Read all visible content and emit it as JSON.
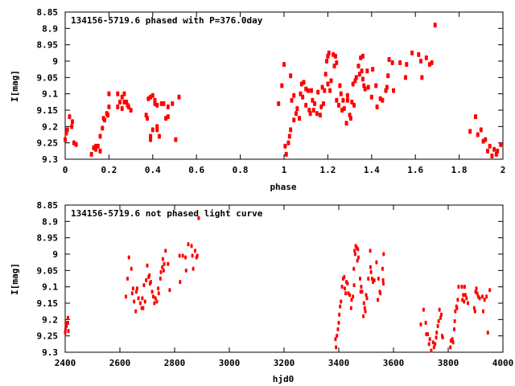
{
  "colors": {
    "points": "#ff0000",
    "axes": "#000000"
  },
  "chart_data": [
    {
      "type": "scatter",
      "title": "134156-5719.6 phased with P=376.0day",
      "xlabel": "phase",
      "ylabel": "I[mag]",
      "xlim": [
        0,
        2
      ],
      "ylim": [
        9.3,
        8.85
      ],
      "y_inverted": true,
      "grid": false,
      "xticks": [
        "0",
        "0.2",
        "0.4",
        "0.6",
        "0.8",
        "1",
        "1.2",
        "1.4",
        "1.6",
        "1.8",
        "2"
      ],
      "xtick_values": [
        0,
        0.2,
        0.4,
        0.6,
        0.8,
        1,
        1.2,
        1.4,
        1.6,
        1.8,
        2
      ],
      "yticks": [
        "8.85",
        "8.9",
        "8.95",
        "9",
        "9.05",
        "9.1",
        "9.15",
        "9.2",
        "9.25",
        "9.3"
      ],
      "ytick_values": [
        8.85,
        8.9,
        8.95,
        9.0,
        9.05,
        9.1,
        9.15,
        9.2,
        9.25,
        9.3
      ],
      "points": [
        [
          0.0,
          9.24
        ],
        [
          0.005,
          9.22
        ],
        [
          0.01,
          9.21
        ],
        [
          0.02,
          9.17
        ],
        [
          0.03,
          9.2
        ],
        [
          0.033,
          9.185
        ],
        [
          0.04,
          9.25
        ],
        [
          0.05,
          9.255
        ],
        [
          0.12,
          9.285
        ],
        [
          0.13,
          9.265
        ],
        [
          0.14,
          9.27
        ],
        [
          0.14,
          9.26
        ],
        [
          0.15,
          9.26
        ],
        [
          0.16,
          9.275
        ],
        [
          0.16,
          9.23
        ],
        [
          0.17,
          9.205
        ],
        [
          0.175,
          9.175
        ],
        [
          0.18,
          9.18
        ],
        [
          0.19,
          9.16
        ],
        [
          0.195,
          9.165
        ],
        [
          0.2,
          9.14
        ],
        [
          0.2,
          9.1
        ],
        [
          0.24,
          9.1
        ],
        [
          0.24,
          9.14
        ],
        [
          0.25,
          9.125
        ],
        [
          0.26,
          9.145
        ],
        [
          0.26,
          9.11
        ],
        [
          0.27,
          9.1
        ],
        [
          0.27,
          9.125
        ],
        [
          0.28,
          9.125
        ],
        [
          0.285,
          9.135
        ],
        [
          0.29,
          9.14
        ],
        [
          0.3,
          9.15
        ],
        [
          0.37,
          9.165
        ],
        [
          0.375,
          9.175
        ],
        [
          0.38,
          9.115
        ],
        [
          0.39,
          9.11
        ],
        [
          0.39,
          9.23
        ],
        [
          0.39,
          9.24
        ],
        [
          0.4,
          9.21
        ],
        [
          0.4,
          9.105
        ],
        [
          0.41,
          9.13
        ],
        [
          0.41,
          9.12
        ],
        [
          0.42,
          9.135
        ],
        [
          0.42,
          9.2
        ],
        [
          0.42,
          9.21
        ],
        [
          0.43,
          9.23
        ],
        [
          0.44,
          9.13
        ],
        [
          0.45,
          9.13
        ],
        [
          0.46,
          9.175
        ],
        [
          0.47,
          9.14
        ],
        [
          0.47,
          9.17
        ],
        [
          0.49,
          9.13
        ],
        [
          0.505,
          9.24
        ],
        [
          0.52,
          9.11
        ],
        [
          0.975,
          9.13
        ],
        [
          0.99,
          9.075
        ],
        [
          1.0,
          9.01
        ],
        [
          1.005,
          9.26
        ],
        [
          1.01,
          9.285
        ],
        [
          1.02,
          9.25
        ],
        [
          1.025,
          9.23
        ],
        [
          1.03,
          9.045
        ],
        [
          1.03,
          9.21
        ],
        [
          1.035,
          9.12
        ],
        [
          1.045,
          9.18
        ],
        [
          1.045,
          9.105
        ],
        [
          1.055,
          9.16
        ],
        [
          1.06,
          9.145
        ],
        [
          1.07,
          9.175
        ],
        [
          1.075,
          9.1
        ],
        [
          1.08,
          9.07
        ],
        [
          1.085,
          9.11
        ],
        [
          1.09,
          9.065
        ],
        [
          1.1,
          9.085
        ],
        [
          1.1,
          9.135
        ],
        [
          1.11,
          9.09
        ],
        [
          1.115,
          9.15
        ],
        [
          1.12,
          9.16
        ],
        [
          1.125,
          9.09
        ],
        [
          1.13,
          9.12
        ],
        [
          1.135,
          9.15
        ],
        [
          1.14,
          9.13
        ],
        [
          1.15,
          9.16
        ],
        [
          1.155,
          9.095
        ],
        [
          1.165,
          9.165
        ],
        [
          1.17,
          9.14
        ],
        [
          1.175,
          9.08
        ],
        [
          1.18,
          9.13
        ],
        [
          1.185,
          9.09
        ],
        [
          1.19,
          9.04
        ],
        [
          1.195,
          9.0
        ],
        [
          1.2,
          8.985
        ],
        [
          1.2,
          9.07
        ],
        [
          1.205,
          8.975
        ],
        [
          1.21,
          9.09
        ],
        [
          1.215,
          9.06
        ],
        [
          1.225,
          8.98
        ],
        [
          1.23,
          9.015
        ],
        [
          1.235,
          8.985
        ],
        [
          1.24,
          9.005
        ],
        [
          1.24,
          9.12
        ],
        [
          1.25,
          9.135
        ],
        [
          1.255,
          9.075
        ],
        [
          1.26,
          9.1
        ],
        [
          1.265,
          9.15
        ],
        [
          1.27,
          9.12
        ],
        [
          1.275,
          9.145
        ],
        [
          1.285,
          9.19
        ],
        [
          1.29,
          9.105
        ],
        [
          1.29,
          9.12
        ],
        [
          1.3,
          9.165
        ],
        [
          1.305,
          9.175
        ],
        [
          1.31,
          9.125
        ],
        [
          1.315,
          9.07
        ],
        [
          1.32,
          9.135
        ],
        [
          1.325,
          9.06
        ],
        [
          1.33,
          9.05
        ],
        [
          1.34,
          9.015
        ],
        [
          1.345,
          9.04
        ],
        [
          1.35,
          8.99
        ],
        [
          1.355,
          9.03
        ],
        [
          1.36,
          8.985
        ],
        [
          1.36,
          9.055
        ],
        [
          1.365,
          9.075
        ],
        [
          1.37,
          9.085
        ],
        [
          1.38,
          9.03
        ],
        [
          1.385,
          9.08
        ],
        [
          1.4,
          9.11
        ],
        [
          1.405,
          9.025
        ],
        [
          1.42,
          9.075
        ],
        [
          1.425,
          9.14
        ],
        [
          1.44,
          9.115
        ],
        [
          1.45,
          9.12
        ],
        [
          1.465,
          9.09
        ],
        [
          1.47,
          9.08
        ],
        [
          1.475,
          9.045
        ],
        [
          1.48,
          8.995
        ],
        [
          1.495,
          9.005
        ],
        [
          1.5,
          9.09
        ],
        [
          1.53,
          9.005
        ],
        [
          1.555,
          9.05
        ],
        [
          1.56,
          9.01
        ],
        [
          1.585,
          8.975
        ],
        [
          1.615,
          8.98
        ],
        [
          1.625,
          9.0
        ],
        [
          1.63,
          9.05
        ],
        [
          1.65,
          8.99
        ],
        [
          1.665,
          9.01
        ],
        [
          1.675,
          9.005
        ],
        [
          1.69,
          8.89
        ],
        [
          1.85,
          9.215
        ],
        [
          1.875,
          9.17
        ],
        [
          1.885,
          9.225
        ],
        [
          1.9,
          9.21
        ],
        [
          1.91,
          9.245
        ],
        [
          1.92,
          9.24
        ],
        [
          1.93,
          9.275
        ],
        [
          1.94,
          9.26
        ],
        [
          1.95,
          9.29
        ],
        [
          1.96,
          9.27
        ],
        [
          1.97,
          9.285
        ],
        [
          1.975,
          9.275
        ],
        [
          1.99,
          9.255
        ]
      ]
    },
    {
      "type": "scatter",
      "title": "134156-5719.6 not phased light curve",
      "xlabel": "hjd0",
      "ylabel": "I[mag]",
      "xlim": [
        2400,
        4000
      ],
      "ylim": [
        9.3,
        8.85
      ],
      "y_inverted": true,
      "grid": false,
      "xticks": [
        "2400",
        "2600",
        "2800",
        "3000",
        "3200",
        "3400",
        "3600",
        "3800",
        "4000"
      ],
      "xtick_values": [
        2400,
        2600,
        2800,
        3000,
        3200,
        3400,
        3600,
        3800,
        4000
      ],
      "yticks": [
        "8.85",
        "8.9",
        "8.95",
        "9",
        "9.05",
        "9.1",
        "9.15",
        "9.2",
        "9.25",
        "9.3"
      ],
      "ytick_values": [
        8.85,
        8.9,
        8.95,
        9.0,
        9.05,
        9.1,
        9.15,
        9.2,
        9.25,
        9.3
      ],
      "points": [
        [
          2400,
          9.24
        ],
        [
          2401,
          9.23
        ],
        [
          2402,
          9.21
        ],
        [
          2405,
          9.22
        ],
        [
          2410,
          9.195
        ],
        [
          2410,
          9.21
        ],
        [
          2412,
          9.235
        ],
        [
          2622,
          9.13
        ],
        [
          2628,
          9.075
        ],
        [
          2633,
          9.01
        ],
        [
          2642,
          9.045
        ],
        [
          2645,
          9.12
        ],
        [
          2648,
          9.105
        ],
        [
          2652,
          9.145
        ],
        [
          2658,
          9.175
        ],
        [
          2660,
          9.115
        ],
        [
          2663,
          9.105
        ],
        [
          2668,
          9.135
        ],
        [
          2675,
          9.15
        ],
        [
          2680,
          9.165
        ],
        [
          2682,
          9.135
        ],
        [
          2685,
          9.165
        ],
        [
          2688,
          9.095
        ],
        [
          2692,
          9.145
        ],
        [
          2696,
          9.08
        ],
        [
          2700,
          9.035
        ],
        [
          2705,
          9.07
        ],
        [
          2708,
          9.065
        ],
        [
          2710,
          9.09
        ],
        [
          2713,
          9.085
        ],
        [
          2718,
          9.115
        ],
        [
          2722,
          9.13
        ],
        [
          2726,
          9.15
        ],
        [
          2730,
          9.135
        ],
        [
          2735,
          9.145
        ],
        [
          2740,
          9.105
        ],
        [
          2742,
          9.12
        ],
        [
          2748,
          9.075
        ],
        [
          2750,
          9.055
        ],
        [
          2755,
          9.04
        ],
        [
          2757,
          9.015
        ],
        [
          2760,
          9.05
        ],
        [
          2762,
          9.03
        ],
        [
          2767,
          8.99
        ],
        [
          2776,
          9.03
        ],
        [
          2782,
          9.11
        ],
        [
          2818,
          9.005
        ],
        [
          2820,
          9.085
        ],
        [
          2830,
          9.005
        ],
        [
          2840,
          9.01
        ],
        [
          2842,
          9.05
        ],
        [
          2850,
          8.97
        ],
        [
          2862,
          8.975
        ],
        [
          2865,
          9.005
        ],
        [
          2868,
          9.045
        ],
        [
          2875,
          8.99
        ],
        [
          2880,
          9.01
        ],
        [
          2883,
          9.005
        ],
        [
          2888,
          8.89
        ],
        [
          3388,
          9.26
        ],
        [
          3390,
          9.285
        ],
        [
          3393,
          9.25
        ],
        [
          3397,
          9.23
        ],
        [
          3400,
          9.21
        ],
        [
          3402,
          9.185
        ],
        [
          3405,
          9.16
        ],
        [
          3408,
          9.145
        ],
        [
          3412,
          9.1
        ],
        [
          3416,
          9.075
        ],
        [
          3420,
          9.07
        ],
        [
          3422,
          9.105
        ],
        [
          3425,
          9.12
        ],
        [
          3428,
          9.085
        ],
        [
          3432,
          9.09
        ],
        [
          3435,
          9.12
        ],
        [
          3440,
          9.125
        ],
        [
          3445,
          9.165
        ],
        [
          3447,
          9.14
        ],
        [
          3452,
          9.13
        ],
        [
          3455,
          9.045
        ],
        [
          3456,
          9.095
        ],
        [
          3458,
          8.99
        ],
        [
          3460,
          9.0
        ],
        [
          3462,
          8.975
        ],
        [
          3465,
          8.98
        ],
        [
          3468,
          9.02
        ],
        [
          3470,
          8.985
        ],
        [
          3472,
          9.01
        ],
        [
          3478,
          9.075
        ],
        [
          3480,
          9.115
        ],
        [
          3482,
          9.1
        ],
        [
          3485,
          9.115
        ],
        [
          3490,
          9.19
        ],
        [
          3492,
          9.15
        ],
        [
          3495,
          9.165
        ],
        [
          3497,
          9.175
        ],
        [
          3500,
          9.125
        ],
        [
          3503,
          9.135
        ],
        [
          3508,
          9.075
        ],
        [
          3515,
          8.99
        ],
        [
          3516,
          9.04
        ],
        [
          3518,
          9.055
        ],
        [
          3522,
          9.075
        ],
        [
          3525,
          9.085
        ],
        [
          3530,
          9.08
        ],
        [
          3538,
          9.025
        ],
        [
          3543,
          9.14
        ],
        [
          3545,
          9.075
        ],
        [
          3550,
          9.115
        ],
        [
          3552,
          9.12
        ],
        [
          3560,
          9.045
        ],
        [
          3562,
          9.08
        ],
        [
          3563,
          9.09
        ],
        [
          3564,
          9.0
        ],
        [
          3700,
          9.215
        ],
        [
          3710,
          9.17
        ],
        [
          3718,
          9.21
        ],
        [
          3720,
          9.245
        ],
        [
          3725,
          9.245
        ],
        [
          3730,
          9.275
        ],
        [
          3733,
          9.26
        ],
        [
          3738,
          9.295
        ],
        [
          3745,
          9.27
        ],
        [
          3748,
          9.285
        ],
        [
          3752,
          9.275
        ],
        [
          3756,
          9.255
        ],
        [
          3758,
          9.24
        ],
        [
          3762,
          9.22
        ],
        [
          3765,
          9.205
        ],
        [
          3768,
          9.17
        ],
        [
          3772,
          9.195
        ],
        [
          3775,
          9.185
        ],
        [
          3778,
          9.25
        ],
        [
          3780,
          9.255
        ],
        [
          3808,
          9.285
        ],
        [
          3810,
          9.265
        ],
        [
          3815,
          9.26
        ],
        [
          3818,
          9.27
        ],
        [
          3822,
          9.23
        ],
        [
          3824,
          9.205
        ],
        [
          3826,
          9.175
        ],
        [
          3830,
          9.16
        ],
        [
          3832,
          9.165
        ],
        [
          3835,
          9.14
        ],
        [
          3838,
          9.1
        ],
        [
          3850,
          9.1
        ],
        [
          3852,
          9.14
        ],
        [
          3855,
          9.125
        ],
        [
          3858,
          9.145
        ],
        [
          3860,
          9.1
        ],
        [
          3863,
          9.125
        ],
        [
          3867,
          9.135
        ],
        [
          3872,
          9.15
        ],
        [
          3895,
          9.165
        ],
        [
          3898,
          9.175
        ],
        [
          3900,
          9.115
        ],
        [
          3903,
          9.105
        ],
        [
          3906,
          9.12
        ],
        [
          3910,
          9.13
        ],
        [
          3915,
          9.135
        ],
        [
          3925,
          9.13
        ],
        [
          3928,
          9.175
        ],
        [
          3933,
          9.14
        ],
        [
          3940,
          9.13
        ],
        [
          3945,
          9.24
        ],
        [
          3952,
          9.11
        ]
      ]
    }
  ]
}
